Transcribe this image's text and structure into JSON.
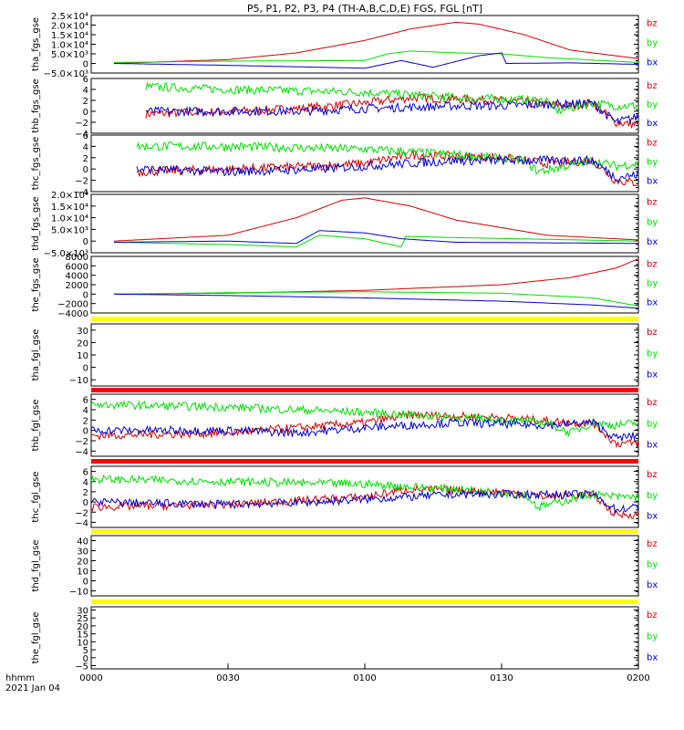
{
  "title": "P5, P1, P2, P3, P4 (TH-A,B,C,D,E) FGS, FGL [nT]",
  "time_axis": {
    "ticks": [
      "0000",
      "0030",
      "0100",
      "0130",
      "0200"
    ],
    "unit_label": "hhmm",
    "date_label": "2021 Jan 04"
  },
  "colors": {
    "bz": "#d40000",
    "by": "#00dd00",
    "bx": "#0000d0",
    "bar_yellow": "#ffff00",
    "bar_red": "#ff0000"
  },
  "chart_data": [
    {
      "type": "line",
      "panel": "tha_fgs_gse",
      "ylabel": "tha_fgs_gse",
      "ylim": [
        -5000,
        25000
      ],
      "yticks": [
        "2.5×10⁴",
        "2.0×10⁴",
        "1.5×10⁴",
        "1.0×10⁴",
        "5.0×10³",
        "0",
        "−5.0×10³"
      ],
      "ytick_values": [
        25000,
        20000,
        15000,
        10000,
        5000,
        0,
        -5000
      ],
      "x_range": [
        "0005",
        "0200"
      ],
      "series": [
        {
          "name": "bz",
          "color": "#d40000",
          "x": [
            "0005",
            "0030",
            "0045",
            "0100",
            "0110",
            "0120",
            "0125",
            "0135",
            "0145",
            "0200"
          ],
          "values": [
            0,
            2000,
            5500,
            12000,
            18000,
            21500,
            20500,
            15000,
            7000,
            2500
          ]
        },
        {
          "name": "by",
          "color": "#00dd00",
          "x": [
            "0005",
            "0030",
            "0100",
            "0105",
            "0110",
            "0120",
            "0130",
            "0140",
            "0200"
          ],
          "values": [
            500,
            1200,
            1500,
            5000,
            6500,
            5500,
            5000,
            3000,
            500
          ]
        },
        {
          "name": "bx",
          "color": "#0000d0",
          "x": [
            "0005",
            "0030",
            "0100",
            "0108",
            "0115",
            "0125",
            "0130",
            "0131",
            "0145",
            "0200"
          ],
          "values": [
            0,
            -1000,
            -2500,
            1500,
            -2000,
            4000,
            5500,
            0,
            300,
            -500
          ]
        }
      ]
    },
    {
      "type": "line",
      "panel": "thb_fgs_gse",
      "ylabel": "thb_fgs_gse",
      "ylim": [
        -4,
        6
      ],
      "yticks": [
        "6",
        "4",
        "2",
        "0",
        "−2",
        "−4"
      ],
      "ytick_values": [
        6,
        4,
        2,
        0,
        -2,
        -4
      ],
      "x_range": [
        "0012",
        "0200"
      ],
      "series": [
        {
          "name": "bz",
          "color": "#d40000",
          "x": [
            "0012",
            "0030",
            "0045",
            "0100",
            "0110",
            "0130",
            "0145",
            "0150",
            "0155",
            "0200"
          ],
          "values": [
            -0.5,
            0,
            0.5,
            1.5,
            2.5,
            2,
            1,
            1.5,
            -2,
            -2.5
          ]
        },
        {
          "name": "by",
          "color": "#00dd00",
          "x": [
            "0012",
            "0030",
            "0100",
            "0120",
            "0140",
            "0142",
            "0150",
            "0155",
            "0200"
          ],
          "values": [
            4.5,
            4,
            3.5,
            2.5,
            2,
            0,
            1.5,
            1,
            1
          ]
        },
        {
          "name": "bx",
          "color": "#0000d0",
          "x": [
            "0012",
            "0030",
            "0045",
            "0100",
            "0120",
            "0130",
            "0150",
            "0155",
            "0200"
          ],
          "values": [
            0,
            0,
            0,
            0.5,
            1,
            1,
            1.5,
            -2,
            -1
          ]
        }
      ]
    },
    {
      "type": "line",
      "panel": "thc_fgs_gse",
      "ylabel": "thc_fgs_gse",
      "ylim": [
        -4,
        6
      ],
      "yticks": [
        "6",
        "4",
        "2",
        "0",
        "−2",
        "−4"
      ],
      "ytick_values": [
        6,
        4,
        2,
        0,
        -2,
        -4
      ],
      "x_range": [
        "0010",
        "0200"
      ],
      "series": [
        {
          "name": "bz",
          "color": "#d40000",
          "x": [
            "0010",
            "0030",
            "0050",
            "0100",
            "0110",
            "0130",
            "0140",
            "0150",
            "0155",
            "0200"
          ],
          "values": [
            -0.5,
            0,
            0.5,
            1,
            2.5,
            2,
            1,
            1.5,
            -2,
            -2.5
          ]
        },
        {
          "name": "by",
          "color": "#00dd00",
          "x": [
            "0010",
            "0030",
            "0100",
            "0120",
            "0135",
            "0138",
            "0150",
            "0155",
            "0200"
          ],
          "values": [
            4,
            4,
            3.5,
            2.5,
            1.5,
            -0.5,
            1.5,
            0.5,
            1
          ]
        },
        {
          "name": "bx",
          "color": "#0000d0",
          "x": [
            "0010",
            "0030",
            "0050",
            "0100",
            "0120",
            "0140",
            "0150",
            "0155",
            "0200"
          ],
          "values": [
            0,
            -0.5,
            0,
            0.5,
            1.5,
            1.5,
            1.5,
            -1.5,
            -1
          ]
        }
      ]
    },
    {
      "type": "line",
      "panel": "thd_fgs_gse",
      "ylabel": "thd_fgs_gse",
      "ylim": [
        -5000,
        20000
      ],
      "yticks": [
        "2.0×10⁴",
        "1.5×10⁴",
        "1.0×10⁴",
        "5.0×10³",
        "0",
        "−5.0×10³"
      ],
      "ytick_values": [
        20000,
        15000,
        10000,
        5000,
        0,
        -5000
      ],
      "x_range": [
        "0005",
        "0200"
      ],
      "series": [
        {
          "name": "bz",
          "color": "#d40000",
          "x": [
            "0005",
            "0030",
            "0045",
            "0055",
            "0100",
            "0110",
            "0120",
            "0140",
            "0200"
          ],
          "values": [
            0,
            2500,
            10000,
            17500,
            18500,
            15000,
            9000,
            2500,
            500
          ]
        },
        {
          "name": "by",
          "color": "#00dd00",
          "x": [
            "0005",
            "0030",
            "0045",
            "0050",
            "0100",
            "0108",
            "0109",
            "0120",
            "0200"
          ],
          "values": [
            -500,
            -1500,
            -2500,
            2500,
            1000,
            -2500,
            2000,
            1500,
            0
          ]
        },
        {
          "name": "bx",
          "color": "#0000d0",
          "x": [
            "0005",
            "0030",
            "0045",
            "0050",
            "0100",
            "0108",
            "0120",
            "0200"
          ],
          "values": [
            -500,
            0,
            -1000,
            4500,
            3500,
            1000,
            -500,
            -1000
          ]
        }
      ]
    },
    {
      "type": "line",
      "panel": "the_fgs_gse",
      "ylabel": "the_fgs_gse",
      "ylim": [
        -4000,
        8000
      ],
      "yticks": [
        "8000",
        "6000",
        "4000",
        "2000",
        "0",
        "−2000",
        "−4000"
      ],
      "ytick_values": [
        8000,
        6000,
        4000,
        2000,
        0,
        -2000,
        -4000
      ],
      "x_range": [
        "0005",
        "0200"
      ],
      "series": [
        {
          "name": "bz",
          "color": "#d40000",
          "x": [
            "0005",
            "0030",
            "0100",
            "0130",
            "0145",
            "0155",
            "0200"
          ],
          "values": [
            0,
            200,
            800,
            2000,
            3500,
            5500,
            7500
          ]
        },
        {
          "name": "by",
          "color": "#00dd00",
          "x": [
            "0005",
            "0030",
            "0100",
            "0130",
            "0150",
            "0200"
          ],
          "values": [
            0,
            300,
            500,
            200,
            -800,
            -2500
          ]
        },
        {
          "name": "bx",
          "color": "#0000d0",
          "x": [
            "0005",
            "0030",
            "0100",
            "0130",
            "0150",
            "0200"
          ],
          "values": [
            0,
            -300,
            -800,
            -1500,
            -2300,
            -3000
          ]
        }
      ]
    },
    {
      "type": "line",
      "panel": "tha_fgl_gse",
      "ylabel": "tha_fgl_gse",
      "ylim": [
        -15,
        35
      ],
      "yticks": [
        "30",
        "20",
        "10",
        "0",
        "−10"
      ],
      "ytick_values": [
        30,
        20,
        10,
        0,
        -10
      ],
      "series": []
    },
    {
      "type": "line",
      "panel": "thb_fgl_gse",
      "ylabel": "thb_fgl_gse",
      "ylim": [
        -5,
        7
      ],
      "yticks": [
        "6",
        "4",
        "2",
        "0",
        "−2",
        "−4"
      ],
      "ytick_values": [
        6,
        4,
        2,
        0,
        -2,
        -4
      ],
      "x_range": [
        "0000",
        "0200"
      ],
      "series": [
        {
          "name": "bz",
          "color": "#d40000",
          "x": [
            "0000",
            "0030",
            "0045",
            "0100",
            "0110",
            "0130",
            "0145",
            "0150",
            "0155",
            "0200"
          ],
          "values": [
            -1,
            -0.5,
            0.5,
            1.5,
            3,
            2.5,
            1.5,
            1.5,
            -2.5,
            -2.5
          ]
        },
        {
          "name": "by",
          "color": "#00dd00",
          "x": [
            "0000",
            "0030",
            "0100",
            "0120",
            "0140",
            "0145",
            "0150",
            "0155",
            "0200"
          ],
          "values": [
            5,
            4.5,
            3.5,
            2.5,
            1.5,
            -0.5,
            1.5,
            1,
            1.5
          ]
        },
        {
          "name": "bx",
          "color": "#0000d0",
          "x": [
            "0000",
            "0030",
            "0045",
            "0100",
            "0120",
            "0140",
            "0150",
            "0155",
            "0200"
          ],
          "values": [
            0,
            0,
            -0.5,
            0.5,
            1.5,
            1,
            1.5,
            -1.5,
            -1
          ]
        }
      ]
    },
    {
      "type": "line",
      "panel": "thc_fgl_gse",
      "ylabel": "thc_fgl_gse",
      "ylim": [
        -5,
        7
      ],
      "yticks": [
        "6",
        "4",
        "2",
        "0",
        "−2",
        "−4"
      ],
      "ytick_values": [
        6,
        4,
        2,
        0,
        -2,
        -4
      ],
      "x_range": [
        "0000",
        "0200"
      ],
      "series": [
        {
          "name": "bz",
          "color": "#d40000",
          "x": [
            "0000",
            "0030",
            "0050",
            "0100",
            "0110",
            "0130",
            "0140",
            "0150",
            "0155",
            "0200"
          ],
          "values": [
            -1,
            -0.5,
            0.5,
            1,
            2.5,
            2,
            1,
            1.5,
            -2.5,
            -2.5
          ]
        },
        {
          "name": "by",
          "color": "#00dd00",
          "x": [
            "0000",
            "0030",
            "0100",
            "0120",
            "0135",
            "0138",
            "0150",
            "0155",
            "0200"
          ],
          "values": [
            4.5,
            4,
            3.5,
            2.5,
            1.5,
            -1,
            1.5,
            1,
            1
          ]
        },
        {
          "name": "bx",
          "color": "#0000d0",
          "x": [
            "0000",
            "0030",
            "0050",
            "0100",
            "0120",
            "0140",
            "0150",
            "0155",
            "0200"
          ],
          "values": [
            0,
            -0.5,
            0,
            0.5,
            1.5,
            1.5,
            1.5,
            -1.5,
            -1
          ]
        }
      ]
    },
    {
      "type": "line",
      "panel": "thd_fgl_gse",
      "ylabel": "thd_fgl_gse",
      "ylim": [
        -15,
        45
      ],
      "yticks": [
        "40",
        "30",
        "20",
        "10",
        "0",
        "−10"
      ],
      "ytick_values": [
        40,
        30,
        20,
        10,
        0,
        -10
      ],
      "series": []
    },
    {
      "type": "line",
      "panel": "the_fgl_gse",
      "ylabel": "the_fgl_gse",
      "ylim": [
        -7,
        32
      ],
      "yticks": [
        "30",
        "25",
        "20",
        "15",
        "10",
        "5",
        "0",
        "−5"
      ],
      "ytick_values": [
        30,
        25,
        20,
        15,
        10,
        5,
        0,
        -5
      ],
      "series": []
    }
  ],
  "legend": [
    "bz",
    "by",
    "bx"
  ]
}
